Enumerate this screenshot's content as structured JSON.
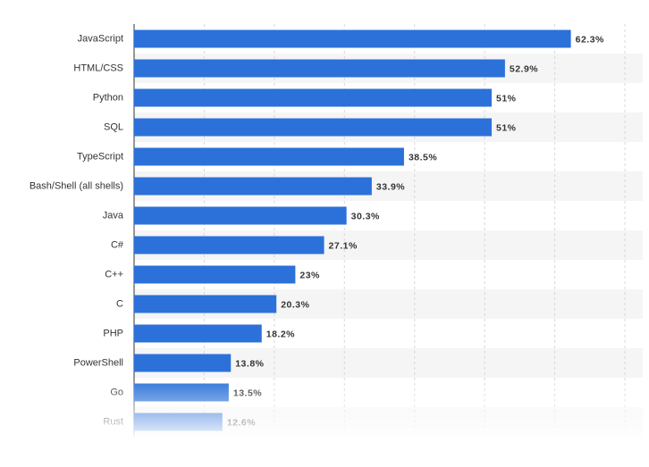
{
  "chart_data": {
    "type": "bar",
    "orientation": "horizontal",
    "categories": [
      "JavaScript",
      "HTML/CSS",
      "Python",
      "SQL",
      "TypeScript",
      "Bash/Shell (all shells)",
      "Java",
      "C#",
      "C++",
      "C",
      "PHP",
      "PowerShell",
      "Go",
      "Rust"
    ],
    "values": [
      62.3,
      52.9,
      51,
      51,
      38.5,
      33.9,
      30.3,
      27.1,
      23,
      20.3,
      18.2,
      13.8,
      13.5,
      12.6
    ],
    "value_labels": [
      "62.3%",
      "52.9%",
      "51%",
      "51%",
      "38.5%",
      "33.9%",
      "30.3%",
      "27.1%",
      "23%",
      "20.3%",
      "18.2%",
      "13.8%",
      "13.5%",
      "12.6%"
    ],
    "color": "#2b71d9",
    "xlim": [
      0,
      70
    ],
    "xticks": [
      0,
      10,
      20,
      30,
      40,
      50,
      60,
      70
    ],
    "grid": true
  }
}
